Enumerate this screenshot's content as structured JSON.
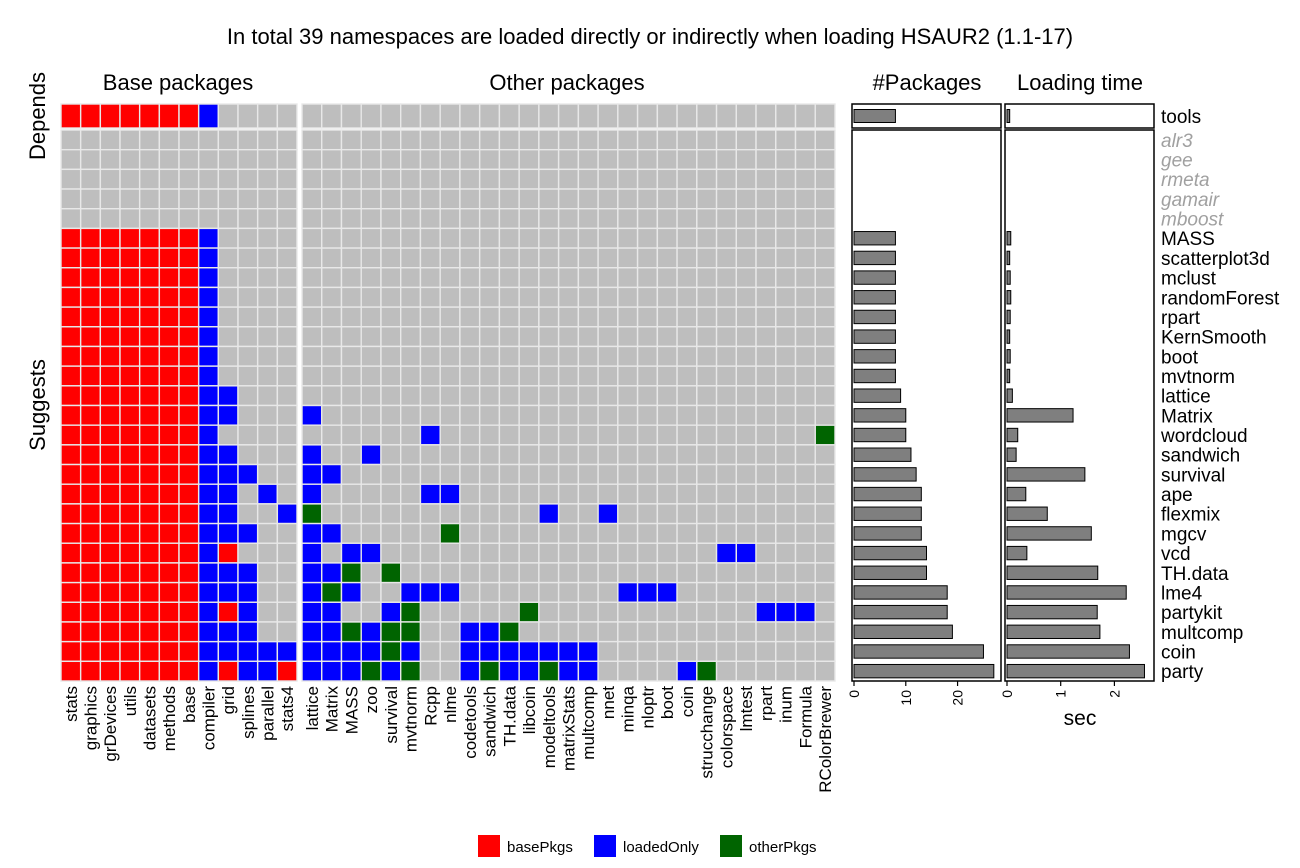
{
  "chart_data": {
    "type": "heatmap",
    "title": "In total 39 namespaces are loaded directly or indirectly when loading HSAUR2 (1.1-17)",
    "panel_titles": {
      "base": "Base packages",
      "other": "Other packages",
      "count": "#Packages",
      "time": "Loading time"
    },
    "facet_labels": {
      "depends": "Depends",
      "suggests": "Suggests"
    },
    "base_columns": [
      "stats",
      "graphics",
      "grDevices",
      "utils",
      "datasets",
      "methods",
      "base",
      "compiler",
      "grid",
      "splines",
      "parallel",
      "stats4"
    ],
    "other_columns": [
      "lattice",
      "Matrix",
      "MASS",
      "zoo",
      "survival",
      "mvtnorm",
      "Rcpp",
      "nlme",
      "codetools",
      "sandwich",
      "TH.data",
      "libcoin",
      "modeltools",
      "matrixStats",
      "multcomp",
      "nnet",
      "minqa",
      "nloptr",
      "boot",
      "coin",
      "strucchange",
      "colorspace",
      "lmtest",
      "rpart",
      "inum",
      "Formula",
      "RColorBrewer"
    ],
    "depends_rows": [
      {
        "name": "tools",
        "available": true,
        "packages": 8,
        "time": 0.05,
        "base": [
          "base",
          "base",
          "base",
          "base",
          "base",
          "base",
          "base",
          "loaded",
          "",
          "",
          "",
          ""
        ],
        "other": []
      }
    ],
    "suggests_rows": [
      {
        "name": "alr3",
        "available": false,
        "packages": 0,
        "time": 0,
        "base": [],
        "other": []
      },
      {
        "name": "gee",
        "available": false,
        "packages": 0,
        "time": 0,
        "base": [],
        "other": []
      },
      {
        "name": "rmeta",
        "available": false,
        "packages": 0,
        "time": 0,
        "base": [],
        "other": []
      },
      {
        "name": "gamair",
        "available": false,
        "packages": 0,
        "time": 0,
        "base": [],
        "other": []
      },
      {
        "name": "mboost",
        "available": false,
        "packages": 0,
        "time": 0,
        "base": [],
        "other": []
      },
      {
        "name": "MASS",
        "available": true,
        "packages": 8,
        "time": 0.07,
        "base": [
          "base",
          "base",
          "base",
          "base",
          "base",
          "base",
          "base",
          "loaded",
          "",
          "",
          "",
          ""
        ],
        "other": []
      },
      {
        "name": "scatterplot3d",
        "available": true,
        "packages": 8,
        "time": 0.05,
        "base": [
          "base",
          "base",
          "base",
          "base",
          "base",
          "base",
          "base",
          "loaded",
          "",
          "",
          "",
          ""
        ],
        "other": []
      },
      {
        "name": "mclust",
        "available": true,
        "packages": 8,
        "time": 0.06,
        "base": [
          "base",
          "base",
          "base",
          "base",
          "base",
          "base",
          "base",
          "loaded",
          "",
          "",
          "",
          ""
        ],
        "other": []
      },
      {
        "name": "randomForest",
        "available": true,
        "packages": 8,
        "time": 0.07,
        "base": [
          "base",
          "base",
          "base",
          "base",
          "base",
          "base",
          "base",
          "loaded",
          "",
          "",
          "",
          ""
        ],
        "other": []
      },
      {
        "name": "rpart",
        "available": true,
        "packages": 8,
        "time": 0.06,
        "base": [
          "base",
          "base",
          "base",
          "base",
          "base",
          "base",
          "base",
          "loaded",
          "",
          "",
          "",
          ""
        ],
        "other": []
      },
      {
        "name": "KernSmooth",
        "available": true,
        "packages": 8,
        "time": 0.05,
        "base": [
          "base",
          "base",
          "base",
          "base",
          "base",
          "base",
          "base",
          "loaded",
          "",
          "",
          "",
          ""
        ],
        "other": []
      },
      {
        "name": "boot",
        "available": true,
        "packages": 8,
        "time": 0.06,
        "base": [
          "base",
          "base",
          "base",
          "base",
          "base",
          "base",
          "base",
          "loaded",
          "",
          "",
          "",
          ""
        ],
        "other": []
      },
      {
        "name": "mvtnorm",
        "available": true,
        "packages": 8,
        "time": 0.05,
        "base": [
          "base",
          "base",
          "base",
          "base",
          "base",
          "base",
          "base",
          "loaded",
          "",
          "",
          "",
          ""
        ],
        "other": []
      },
      {
        "name": "lattice",
        "available": true,
        "packages": 9,
        "time": 0.1,
        "base": [
          "base",
          "base",
          "base",
          "base",
          "base",
          "base",
          "base",
          "loaded",
          "loaded",
          "",
          "",
          ""
        ],
        "other": []
      },
      {
        "name": "Matrix",
        "available": true,
        "packages": 10,
        "time": 1.23,
        "base": [
          "base",
          "base",
          "base",
          "base",
          "base",
          "base",
          "base",
          "loaded",
          "loaded",
          "",
          "",
          ""
        ],
        "other": [
          "loaded",
          "",
          "",
          "",
          "",
          "",
          "",
          "",
          "",
          "",
          "",
          "",
          "",
          "",
          "",
          "",
          "",
          "",
          "",
          "",
          "",
          "",
          "",
          "",
          "",
          "",
          ""
        ]
      },
      {
        "name": "wordcloud",
        "available": true,
        "packages": 10,
        "time": 0.2,
        "base": [
          "base",
          "base",
          "base",
          "base",
          "base",
          "base",
          "base",
          "loaded",
          "",
          "",
          "",
          ""
        ],
        "other": [
          "",
          "",
          "",
          "",
          "",
          "",
          "loaded",
          "",
          "",
          "",
          "",
          "",
          "",
          "",
          "",
          "",
          "",
          "",
          "",
          "",
          "",
          "",
          "",
          "",
          "",
          "",
          "other"
        ]
      },
      {
        "name": "sandwich",
        "available": true,
        "packages": 11,
        "time": 0.17,
        "base": [
          "base",
          "base",
          "base",
          "base",
          "base",
          "base",
          "base",
          "loaded",
          "loaded",
          "",
          "",
          ""
        ],
        "other": [
          "loaded",
          "",
          "",
          "loaded",
          "",
          "",
          "",
          "",
          "",
          "",
          "",
          "",
          "",
          "",
          "",
          "",
          "",
          "",
          "",
          "",
          "",
          "",
          "",
          "",
          "",
          "",
          ""
        ]
      },
      {
        "name": "survival",
        "available": true,
        "packages": 12,
        "time": 1.45,
        "base": [
          "base",
          "base",
          "base",
          "base",
          "base",
          "base",
          "base",
          "loaded",
          "loaded",
          "loaded",
          "",
          ""
        ],
        "other": [
          "loaded",
          "loaded",
          "",
          "",
          "",
          "",
          "",
          "",
          "",
          "",
          "",
          "",
          "",
          "",
          "",
          "",
          "",
          "",
          "",
          "",
          "",
          "",
          "",
          "",
          "",
          "",
          ""
        ]
      },
      {
        "name": "ape",
        "available": true,
        "packages": 13,
        "time": 0.35,
        "base": [
          "base",
          "base",
          "base",
          "base",
          "base",
          "base",
          "base",
          "loaded",
          "loaded",
          "",
          "loaded",
          ""
        ],
        "other": [
          "loaded",
          "",
          "",
          "",
          "",
          "",
          "loaded",
          "loaded",
          "",
          "",
          "",
          "",
          "",
          "",
          "",
          "",
          "",
          "",
          "",
          "",
          "",
          "",
          "",
          "",
          "",
          "",
          ""
        ]
      },
      {
        "name": "flexmix",
        "available": true,
        "packages": 13,
        "time": 0.75,
        "base": [
          "base",
          "base",
          "base",
          "base",
          "base",
          "base",
          "base",
          "loaded",
          "loaded",
          "",
          "",
          "loaded"
        ],
        "other": [
          "other",
          "",
          "",
          "",
          "",
          "",
          "",
          "",
          "",
          "",
          "",
          "",
          "loaded",
          "",
          "",
          "loaded",
          "",
          "",
          "",
          "",
          "",
          "",
          "",
          "",
          "",
          "",
          ""
        ]
      },
      {
        "name": "mgcv",
        "available": true,
        "packages": 13,
        "time": 1.57,
        "base": [
          "base",
          "base",
          "base",
          "base",
          "base",
          "base",
          "base",
          "loaded",
          "loaded",
          "loaded",
          "",
          ""
        ],
        "other": [
          "loaded",
          "loaded",
          "",
          "",
          "",
          "",
          "",
          "other",
          "",
          "",
          "",
          "",
          "",
          "",
          "",
          "",
          "",
          "",
          "",
          "",
          "",
          "",
          "",
          "",
          "",
          "",
          ""
        ]
      },
      {
        "name": "vcd",
        "available": true,
        "packages": 14,
        "time": 0.37,
        "base": [
          "base",
          "base",
          "base",
          "base",
          "base",
          "base",
          "base",
          "loaded",
          "base",
          "",
          "",
          ""
        ],
        "other": [
          "loaded",
          "",
          "loaded",
          "loaded",
          "",
          "",
          "",
          "",
          "",
          "",
          "",
          "",
          "",
          "",
          "",
          "",
          "",
          "",
          "",
          "",
          "",
          "loaded",
          "loaded",
          "",
          "",
          "",
          ""
        ]
      },
      {
        "name": "TH.data",
        "available": true,
        "packages": 14,
        "time": 1.69,
        "base": [
          "base",
          "base",
          "base",
          "base",
          "base",
          "base",
          "base",
          "loaded",
          "loaded",
          "loaded",
          "",
          ""
        ],
        "other": [
          "loaded",
          "loaded",
          "other",
          "",
          "other",
          "",
          "",
          "",
          "",
          "",
          "",
          "",
          "",
          "",
          "",
          "",
          "",
          "",
          "",
          "",
          "",
          "",
          "",
          "",
          "",
          "",
          ""
        ]
      },
      {
        "name": "lme4",
        "available": true,
        "packages": 18,
        "time": 2.22,
        "base": [
          "base",
          "base",
          "base",
          "base",
          "base",
          "base",
          "base",
          "loaded",
          "loaded",
          "loaded",
          "",
          ""
        ],
        "other": [
          "loaded",
          "other",
          "loaded",
          "",
          "",
          "loaded",
          "loaded",
          "loaded",
          "",
          "",
          "",
          "",
          "",
          "",
          "",
          "",
          "loaded",
          "loaded",
          "loaded",
          "",
          "",
          "",
          "",
          "",
          "",
          "",
          ""
        ]
      },
      {
        "name": "partykit",
        "available": true,
        "packages": 18,
        "time": 1.68,
        "base": [
          "base",
          "base",
          "base",
          "base",
          "base",
          "base",
          "base",
          "loaded",
          "base",
          "loaded",
          "",
          ""
        ],
        "other": [
          "loaded",
          "loaded",
          "",
          "",
          "loaded",
          "other",
          "",
          "",
          "",
          "",
          "",
          "other",
          "",
          "",
          "",
          "",
          "",
          "",
          "",
          "",
          "",
          "",
          "",
          "loaded",
          "loaded",
          "loaded",
          ""
        ]
      },
      {
        "name": "multcomp",
        "available": true,
        "packages": 19,
        "time": 1.73,
        "base": [
          "base",
          "base",
          "base",
          "base",
          "base",
          "base",
          "base",
          "loaded",
          "loaded",
          "loaded",
          "",
          ""
        ],
        "other": [
          "loaded",
          "loaded",
          "other",
          "loaded",
          "other",
          "other",
          "",
          "",
          "loaded",
          "loaded",
          "other",
          "",
          "",
          "",
          "",
          "",
          "",
          "",
          "",
          "",
          "",
          "",
          "",
          "",
          "",
          "",
          ""
        ]
      },
      {
        "name": "coin",
        "available": true,
        "packages": 25,
        "time": 2.28,
        "base": [
          "base",
          "base",
          "base",
          "base",
          "base",
          "base",
          "base",
          "loaded",
          "loaded",
          "loaded",
          "loaded",
          "loaded"
        ],
        "other": [
          "loaded",
          "loaded",
          "loaded",
          "loaded",
          "other",
          "loaded",
          "",
          "",
          "loaded",
          "loaded",
          "loaded",
          "loaded",
          "loaded",
          "loaded",
          "loaded",
          "",
          "",
          "",
          "",
          "",
          "",
          "",
          "",
          "",
          "",
          "",
          ""
        ]
      },
      {
        "name": "party",
        "available": true,
        "packages": 27,
        "time": 2.56,
        "base": [
          "base",
          "base",
          "base",
          "base",
          "base",
          "base",
          "base",
          "loaded",
          "base",
          "loaded",
          "loaded",
          "base"
        ],
        "other": [
          "loaded",
          "loaded",
          "loaded",
          "other",
          "loaded",
          "other",
          "",
          "",
          "loaded",
          "other",
          "loaded",
          "loaded",
          "other",
          "loaded",
          "loaded",
          "",
          "",
          "",
          "",
          "loaded",
          "other",
          "",
          "",
          "",
          "",
          "",
          ""
        ]
      }
    ],
    "count_axis": {
      "ylim": [
        0,
        28
      ],
      "ticks": [
        "0",
        "10",
        "20"
      ]
    },
    "time_axis": {
      "ylim": [
        0,
        2.7
      ],
      "ticks": [
        "0",
        "1",
        "2"
      ],
      "label": "sec"
    },
    "legend": [
      {
        "key": "base",
        "label": "basePkgs",
        "color": "#ff0000"
      },
      {
        "key": "loaded",
        "label": "loadedOnly",
        "color": "#0000ff"
      },
      {
        "key": "other",
        "label": "otherPkgs",
        "color": "#006400"
      }
    ],
    "colors": {
      "empty": "#bebebe",
      "bar_fill": "#7f7f7f",
      "unavailable_label": "#a0a0a0"
    }
  }
}
